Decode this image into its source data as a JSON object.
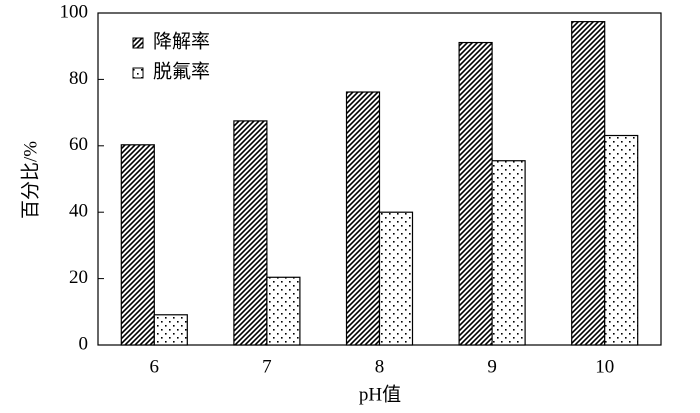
{
  "chart_data": {
    "type": "bar",
    "x_label": "pH值",
    "y_label": "百分比/%",
    "categories": [
      "6",
      "7",
      "8",
      "9",
      "10"
    ],
    "series": [
      {
        "name": "降解率",
        "color": "#000000",
        "pattern": "hatch",
        "values": [
          60.3,
          67.5,
          76.2,
          91.1,
          97.4
        ]
      },
      {
        "name": "脱氟率",
        "color": "#000000",
        "pattern": "dots",
        "values": [
          9.1,
          20.4,
          40.0,
          55.5,
          63.1
        ]
      }
    ],
    "ylim": [
      0,
      100
    ],
    "yticks": [
      0,
      20,
      40,
      60,
      80,
      100
    ],
    "grid": false,
    "legend": "upper left"
  }
}
